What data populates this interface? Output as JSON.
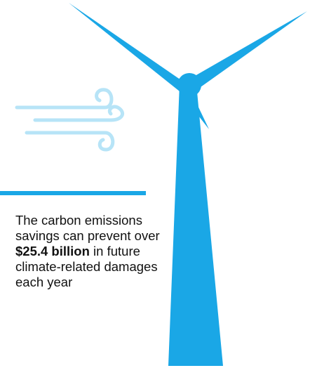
{
  "colors": {
    "turbine_blue": "#1aa7e6",
    "wind_light_blue": "#b7e4f7",
    "text": "#111111",
    "background": "#ffffff"
  },
  "icons": {
    "turbine": "wind-turbine-icon",
    "wind": "wind-gust-icon"
  },
  "statement": {
    "before": "The carbon emissions savings can prevent over ",
    "highlight": "$25.4 billion",
    "after": " in future climate-related damages each year"
  }
}
